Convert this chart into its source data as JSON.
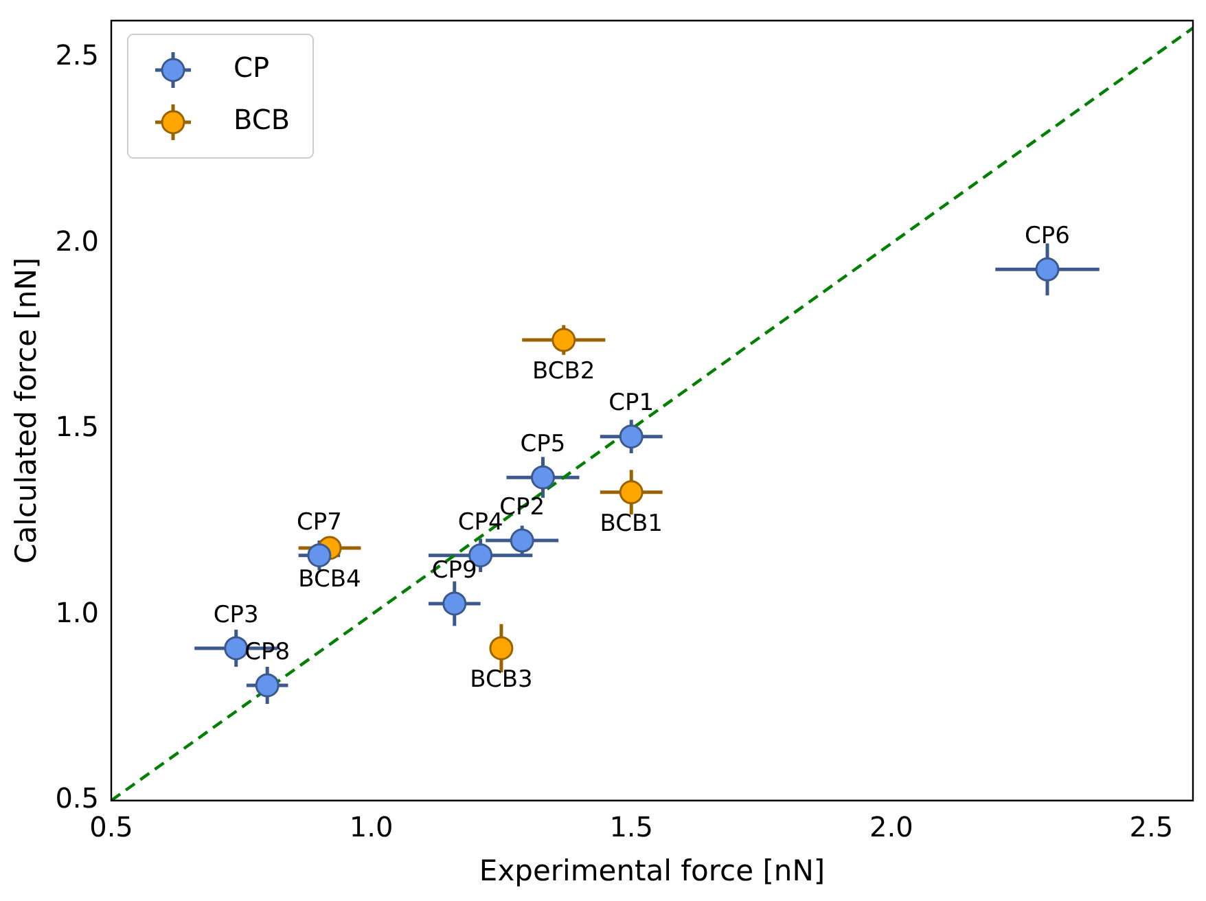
{
  "chart_data": {
    "type": "scatter",
    "xlabel": "Experimental force [nN]",
    "ylabel": "Calculated force [nN]",
    "xlim": [
      0.5,
      2.58
    ],
    "ylim": [
      0.5,
      2.6
    ],
    "xticks": [
      0.5,
      {
        "value": 1,
        "label": "1.0"
      },
      1.5,
      {
        "value": 2,
        "label": "2.0"
      },
      2.5
    ],
    "yticks": [
      0.5,
      {
        "value": 1,
        "label": "1.0"
      },
      1.5,
      {
        "value": 2,
        "label": "2.0"
      },
      2.5
    ],
    "grid": false,
    "legend": "top left",
    "marker": "circle",
    "series": [
      {
        "name": "CP",
        "color": "#6495ed",
        "x": [
          1.5,
          1.29,
          0.74,
          1.21,
          1.33,
          2.3,
          0.9,
          0.8,
          1.16
        ],
        "values": [
          1.48,
          1.2,
          0.91,
          1.16,
          1.37,
          1.93,
          1.16,
          0.81,
          1.03
        ],
        "errors": [
          0.045,
          0.04,
          0.05,
          0.045,
          0.055,
          0.07,
          0.04,
          0.05,
          0.06
        ],
        "xerrors": [
          0.06,
          0.07,
          0.08,
          0.1,
          0.07,
          0.1,
          0.04,
          0.04,
          0.05
        ]
      },
      {
        "name": "BCB",
        "color": "#ffa500",
        "x": [
          1.5,
          1.37,
          1.25,
          0.92
        ],
        "values": [
          1.33,
          1.74,
          0.91,
          1.18
        ],
        "errors": [
          0.06,
          0.04,
          0.065,
          0.025
        ],
        "xerrors": [
          0.06,
          0.08,
          null,
          0.06
        ]
      },
      {
        "type": "line",
        "color": "#008000",
        "line_style": "dashed",
        "marker": "none",
        "x": [
          0.5,
          2.58
        ],
        "values": [
          0.5,
          2.58
        ]
      }
    ],
    "annotations": [
      {
        "text": "CP1",
        "x": 1.5,
        "y": 1.48
      },
      {
        "text": "CP2",
        "x": 1.29,
        "y": 1.2
      },
      {
        "text": "CP3",
        "x": 0.74,
        "y": 0.91
      },
      {
        "text": "CP4",
        "x": 1.21,
        "y": 1.16
      },
      {
        "text": "CP5",
        "x": 1.33,
        "y": 1.37
      },
      {
        "text": "CP6",
        "x": 2.3,
        "y": 1.93
      },
      {
        "text": "CP7",
        "x": 0.9,
        "y": 1.16
      },
      {
        "text": "CP8",
        "x": 0.8,
        "y": 0.81
      },
      {
        "text": "CP9",
        "x": 1.16,
        "y": 1.03
      },
      {
        "text": "BCB1",
        "x": 1.5,
        "y": 1.33
      },
      {
        "text": "BCB2",
        "x": 1.37,
        "y": 1.74
      },
      {
        "text": "BCB3",
        "x": 1.25,
        "y": 0.91
      },
      {
        "text": "BCB4",
        "x": 0.92,
        "y": 1.18
      }
    ]
  }
}
